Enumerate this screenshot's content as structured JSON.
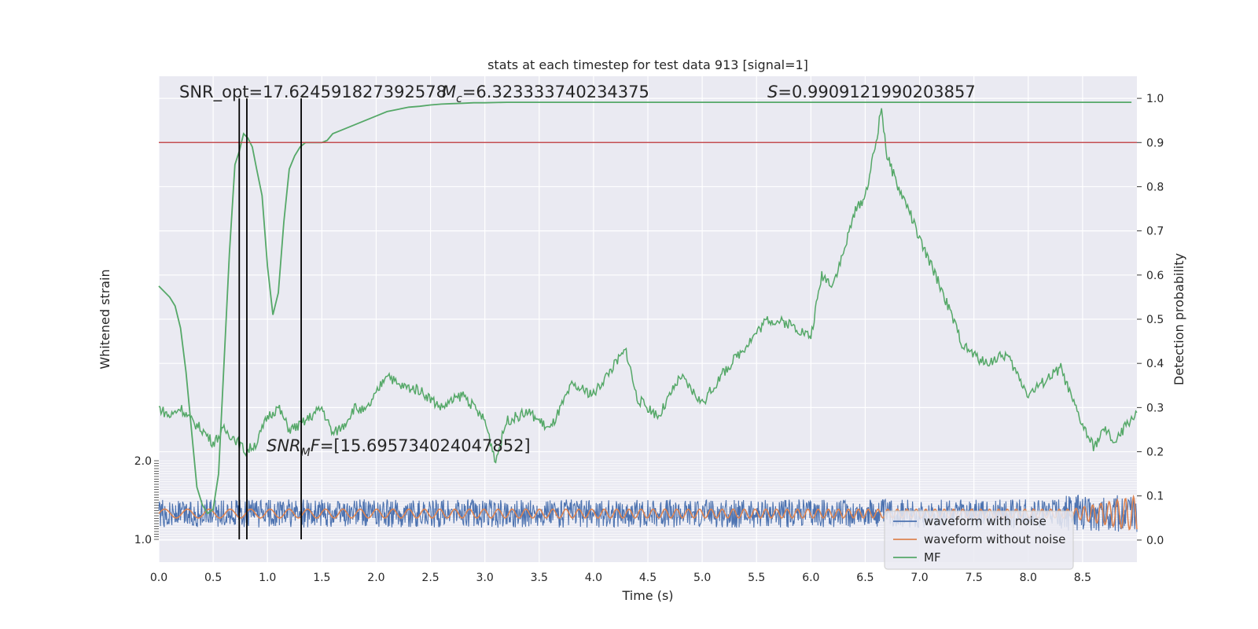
{
  "chart_data": {
    "type": "line",
    "title": "stats at each timestep for test data 913 [signal=1]",
    "xlabel": "Time (s)",
    "ylabel_left": "Whitened strain",
    "ylabel_right": "Detection probability",
    "xlim": [
      0,
      9.0
    ],
    "ylim_right": [
      -0.05,
      1.05
    ],
    "xticks": [
      "0.0",
      "0.5",
      "1.0",
      "1.5",
      "2.0",
      "2.5",
      "3.0",
      "3.5",
      "4.0",
      "4.5",
      "5.0",
      "5.5",
      "6.0",
      "6.5",
      "7.0",
      "7.5",
      "8.0",
      "8.5"
    ],
    "yticks_right": [
      "0.0",
      "0.1",
      "0.2",
      "0.3",
      "0.4",
      "0.5",
      "0.6",
      "0.7",
      "0.8",
      "0.9",
      "1.0"
    ],
    "yticks_left_top": "2.0",
    "yticks_left_bottom": "1.0",
    "grid": true,
    "legend_position": "lower-right",
    "annotations": {
      "snr_opt": "SNR_opt=17.624591827392578",
      "mc": "=6.323333740234375",
      "s": "=0.9909121990203857",
      "snr_mf": "=[15.695734024047852]"
    },
    "threshold": 0.9,
    "vertical_lines_x": [
      0.74,
      0.81,
      1.31
    ],
    "series": [
      {
        "name": "waveform with noise",
        "color": "#4c72b0",
        "amplitude": 0.032,
        "center": 0.06
      },
      {
        "name": "waveform without noise",
        "color": "#dd8452",
        "amplitude": 0.01,
        "center": 0.06
      },
      {
        "name": "MF",
        "color": "#55a868",
        "x": [
          0.0,
          0.1,
          0.15,
          0.2,
          0.25,
          0.3,
          0.35,
          0.4,
          0.45,
          0.5,
          0.55,
          0.6,
          0.65,
          0.7,
          0.74,
          0.78,
          0.82,
          0.86,
          0.9,
          0.95,
          1.0,
          1.05,
          1.1,
          1.15,
          1.2,
          1.25,
          1.3,
          1.35,
          1.4,
          1.5,
          1.55,
          1.6,
          1.7,
          1.8,
          1.9,
          2.0,
          2.1,
          2.2,
          2.3,
          2.4,
          2.5,
          2.6,
          2.7,
          2.8,
          2.9,
          3.0,
          3.2,
          3.5,
          4.0,
          4.5,
          5.0,
          5.5,
          6.0,
          6.5,
          7.0,
          7.5,
          8.0,
          8.5,
          8.95
        ],
        "values": [
          0.575,
          0.55,
          0.53,
          0.48,
          0.38,
          0.25,
          0.12,
          0.08,
          0.06,
          0.07,
          0.15,
          0.4,
          0.65,
          0.85,
          0.88,
          0.92,
          0.91,
          0.89,
          0.84,
          0.78,
          0.62,
          0.51,
          0.56,
          0.72,
          0.84,
          0.87,
          0.89,
          0.9,
          0.9,
          0.9,
          0.905,
          0.92,
          0.93,
          0.94,
          0.95,
          0.96,
          0.97,
          0.975,
          0.98,
          0.982,
          0.985,
          0.987,
          0.988,
          0.989,
          0.99,
          0.99,
          0.991,
          0.991,
          0.991,
          0.991,
          0.991,
          0.991,
          0.991,
          0.991,
          0.991,
          0.991,
          0.991,
          0.991,
          0.991
        ]
      }
    ],
    "detection_probability": {
      "color": "#55a868",
      "x": [
        0.0,
        0.1,
        0.2,
        0.3,
        0.4,
        0.5,
        0.6,
        0.7,
        0.8,
        0.9,
        1.0,
        1.1,
        1.2,
        1.3,
        1.4,
        1.5,
        1.6,
        1.7,
        1.8,
        1.9,
        2.0,
        2.1,
        2.2,
        2.4,
        2.6,
        2.8,
        3.0,
        3.1,
        3.2,
        3.4,
        3.6,
        3.8,
        4.0,
        4.2,
        4.3,
        4.4,
        4.6,
        4.8,
        5.0,
        5.2,
        5.4,
        5.6,
        5.8,
        6.0,
        6.1,
        6.2,
        6.3,
        6.4,
        6.5,
        6.6,
        6.65,
        6.7,
        6.8,
        6.9,
        7.0,
        7.2,
        7.4,
        7.6,
        7.8,
        8.0,
        8.2,
        8.3,
        8.4,
        8.5,
        8.6,
        8.7,
        8.8,
        8.9,
        9.0
      ],
      "values": [
        0.3,
        0.28,
        0.3,
        0.27,
        0.25,
        0.22,
        0.25,
        0.23,
        0.2,
        0.22,
        0.28,
        0.3,
        0.25,
        0.26,
        0.28,
        0.3,
        0.24,
        0.26,
        0.3,
        0.29,
        0.33,
        0.38,
        0.35,
        0.34,
        0.3,
        0.33,
        0.27,
        0.18,
        0.27,
        0.29,
        0.25,
        0.35,
        0.33,
        0.4,
        0.43,
        0.32,
        0.28,
        0.37,
        0.31,
        0.38,
        0.44,
        0.5,
        0.49,
        0.46,
        0.6,
        0.58,
        0.65,
        0.74,
        0.78,
        0.9,
        0.98,
        0.87,
        0.8,
        0.75,
        0.68,
        0.57,
        0.44,
        0.4,
        0.42,
        0.33,
        0.37,
        0.39,
        0.32,
        0.26,
        0.21,
        0.25,
        0.22,
        0.26,
        0.29
      ]
    }
  }
}
